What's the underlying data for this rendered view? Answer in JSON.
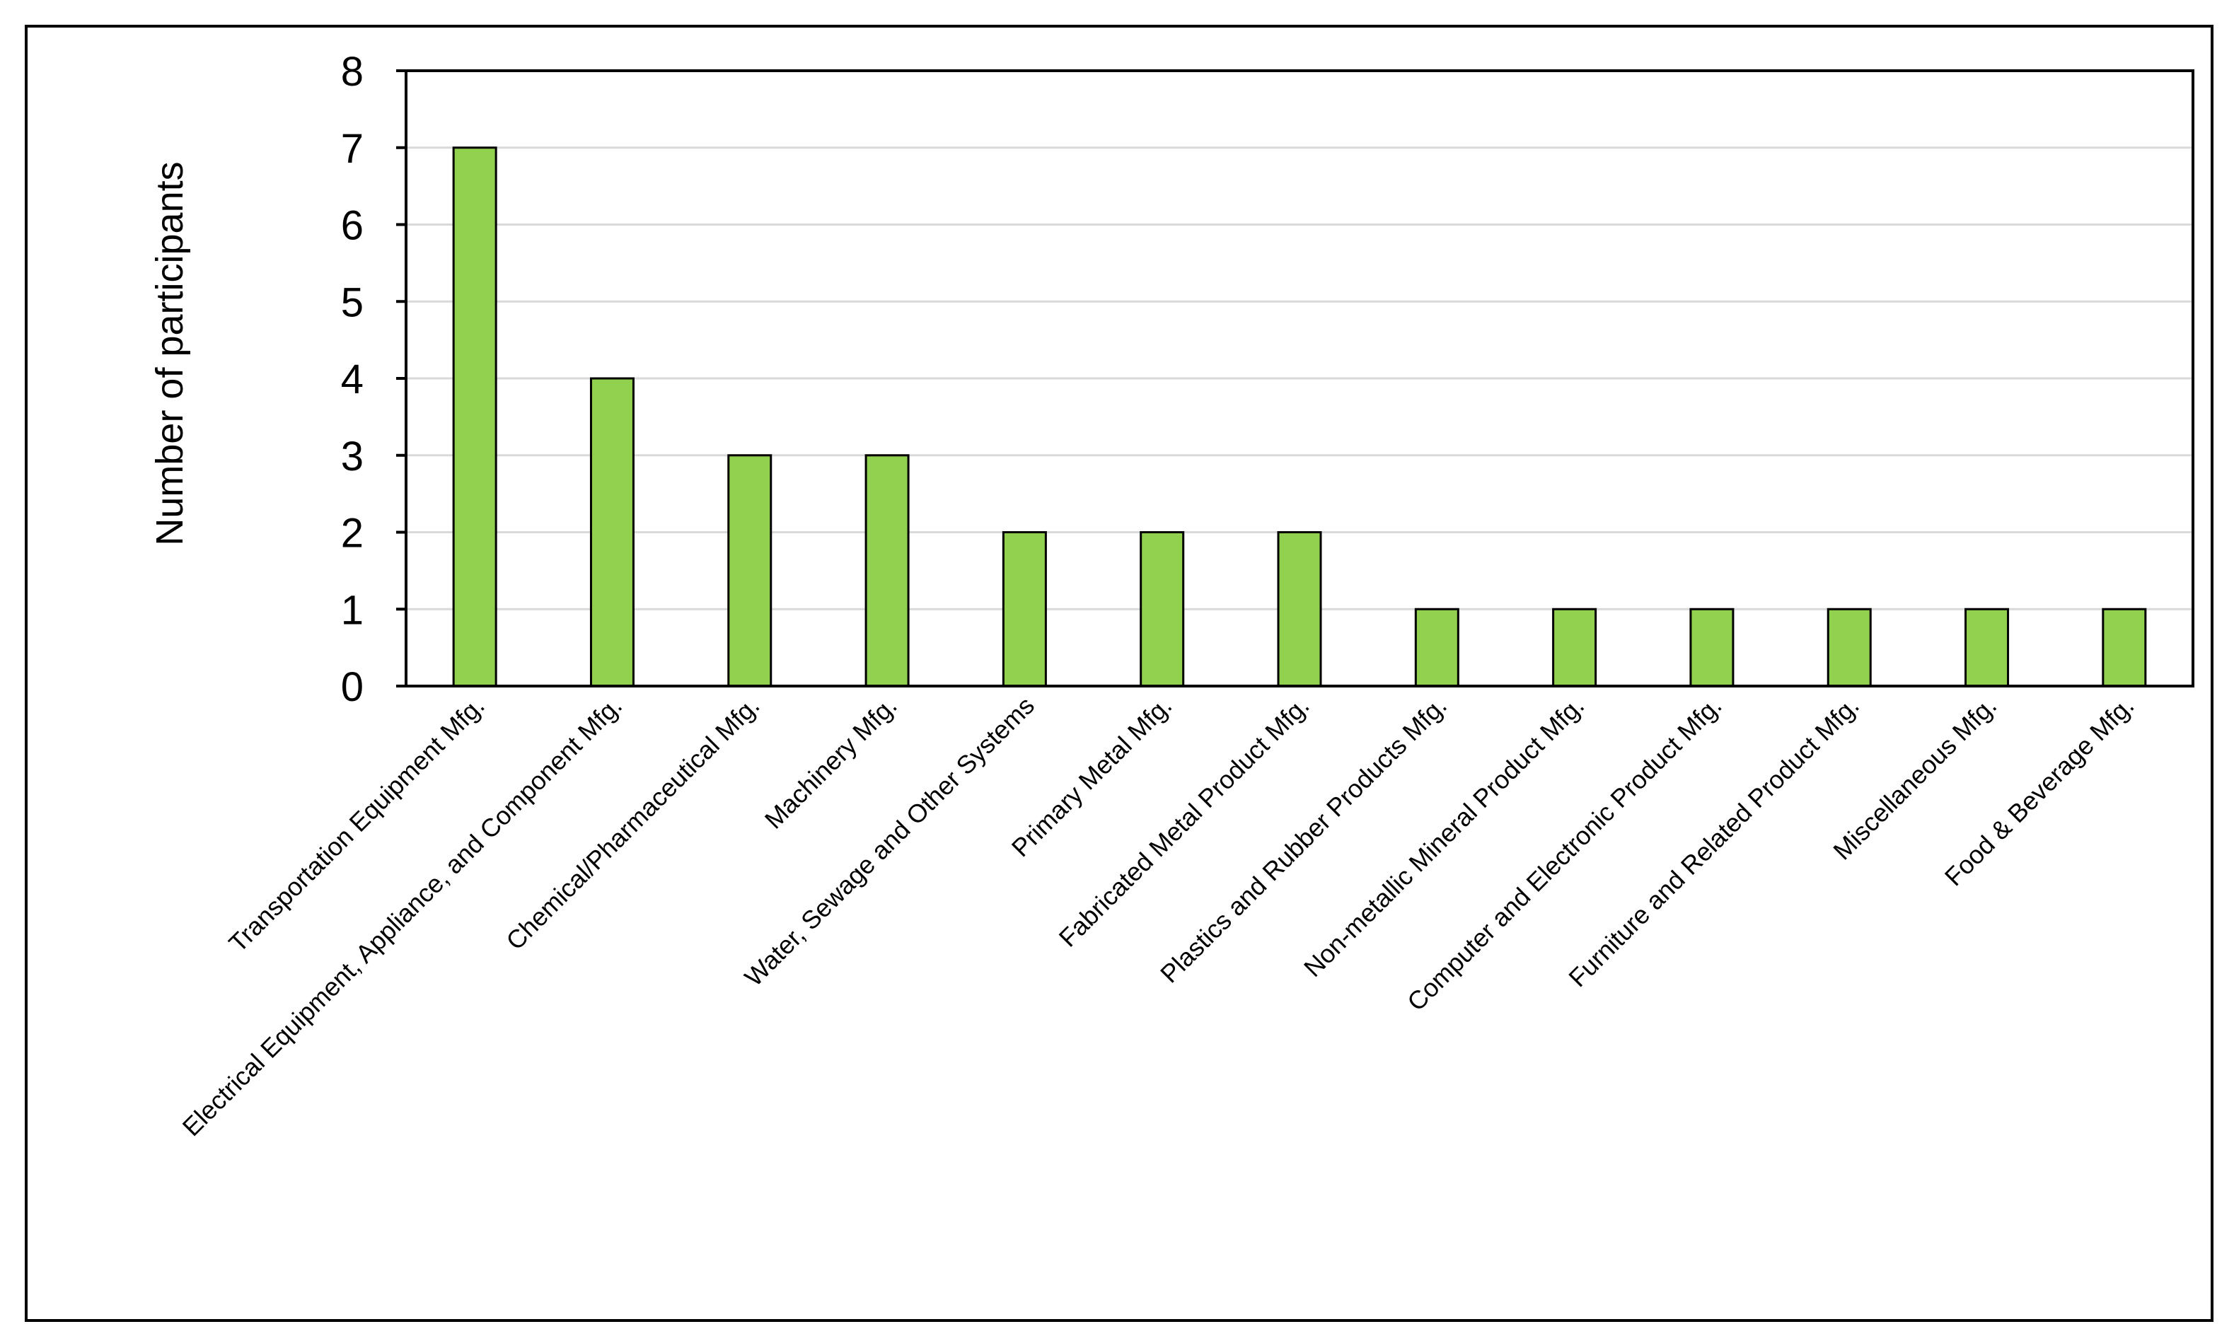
{
  "chart_data": {
    "type": "bar",
    "categories": [
      "Transportation Equipment Mfg.",
      "Electrical Equipment, Appliance, and Component Mfg.",
      "Chemical/Pharmaceutical Mfg.",
      "Machinery Mfg.",
      "Water, Sewage and Other Systems",
      "Primary Metal Mfg.",
      "Fabricated Metal Product Mfg.",
      "Plastics and Rubber Products Mfg.",
      "Non-metallic Mineral Product Mfg.",
      "Computer and Electronic Product Mfg.",
      "Furniture and Related Product Mfg.",
      "Miscellaneous Mfg.",
      "Food & Beverage Mfg."
    ],
    "values": [
      7,
      4,
      3,
      3,
      2,
      2,
      2,
      1,
      1,
      1,
      1,
      1,
      1
    ],
    "title": "",
    "xlabel": "",
    "ylabel": "Number of participants",
    "ylim": [
      0,
      8
    ],
    "yticks": [
      "0",
      "1",
      "2",
      "3",
      "4",
      "5",
      "6",
      "7",
      "8"
    ],
    "grid": true,
    "legend": "none",
    "bar_color": "#92d050",
    "bar_edge_color": "#000000",
    "grid_color": "#d9d9d9"
  }
}
